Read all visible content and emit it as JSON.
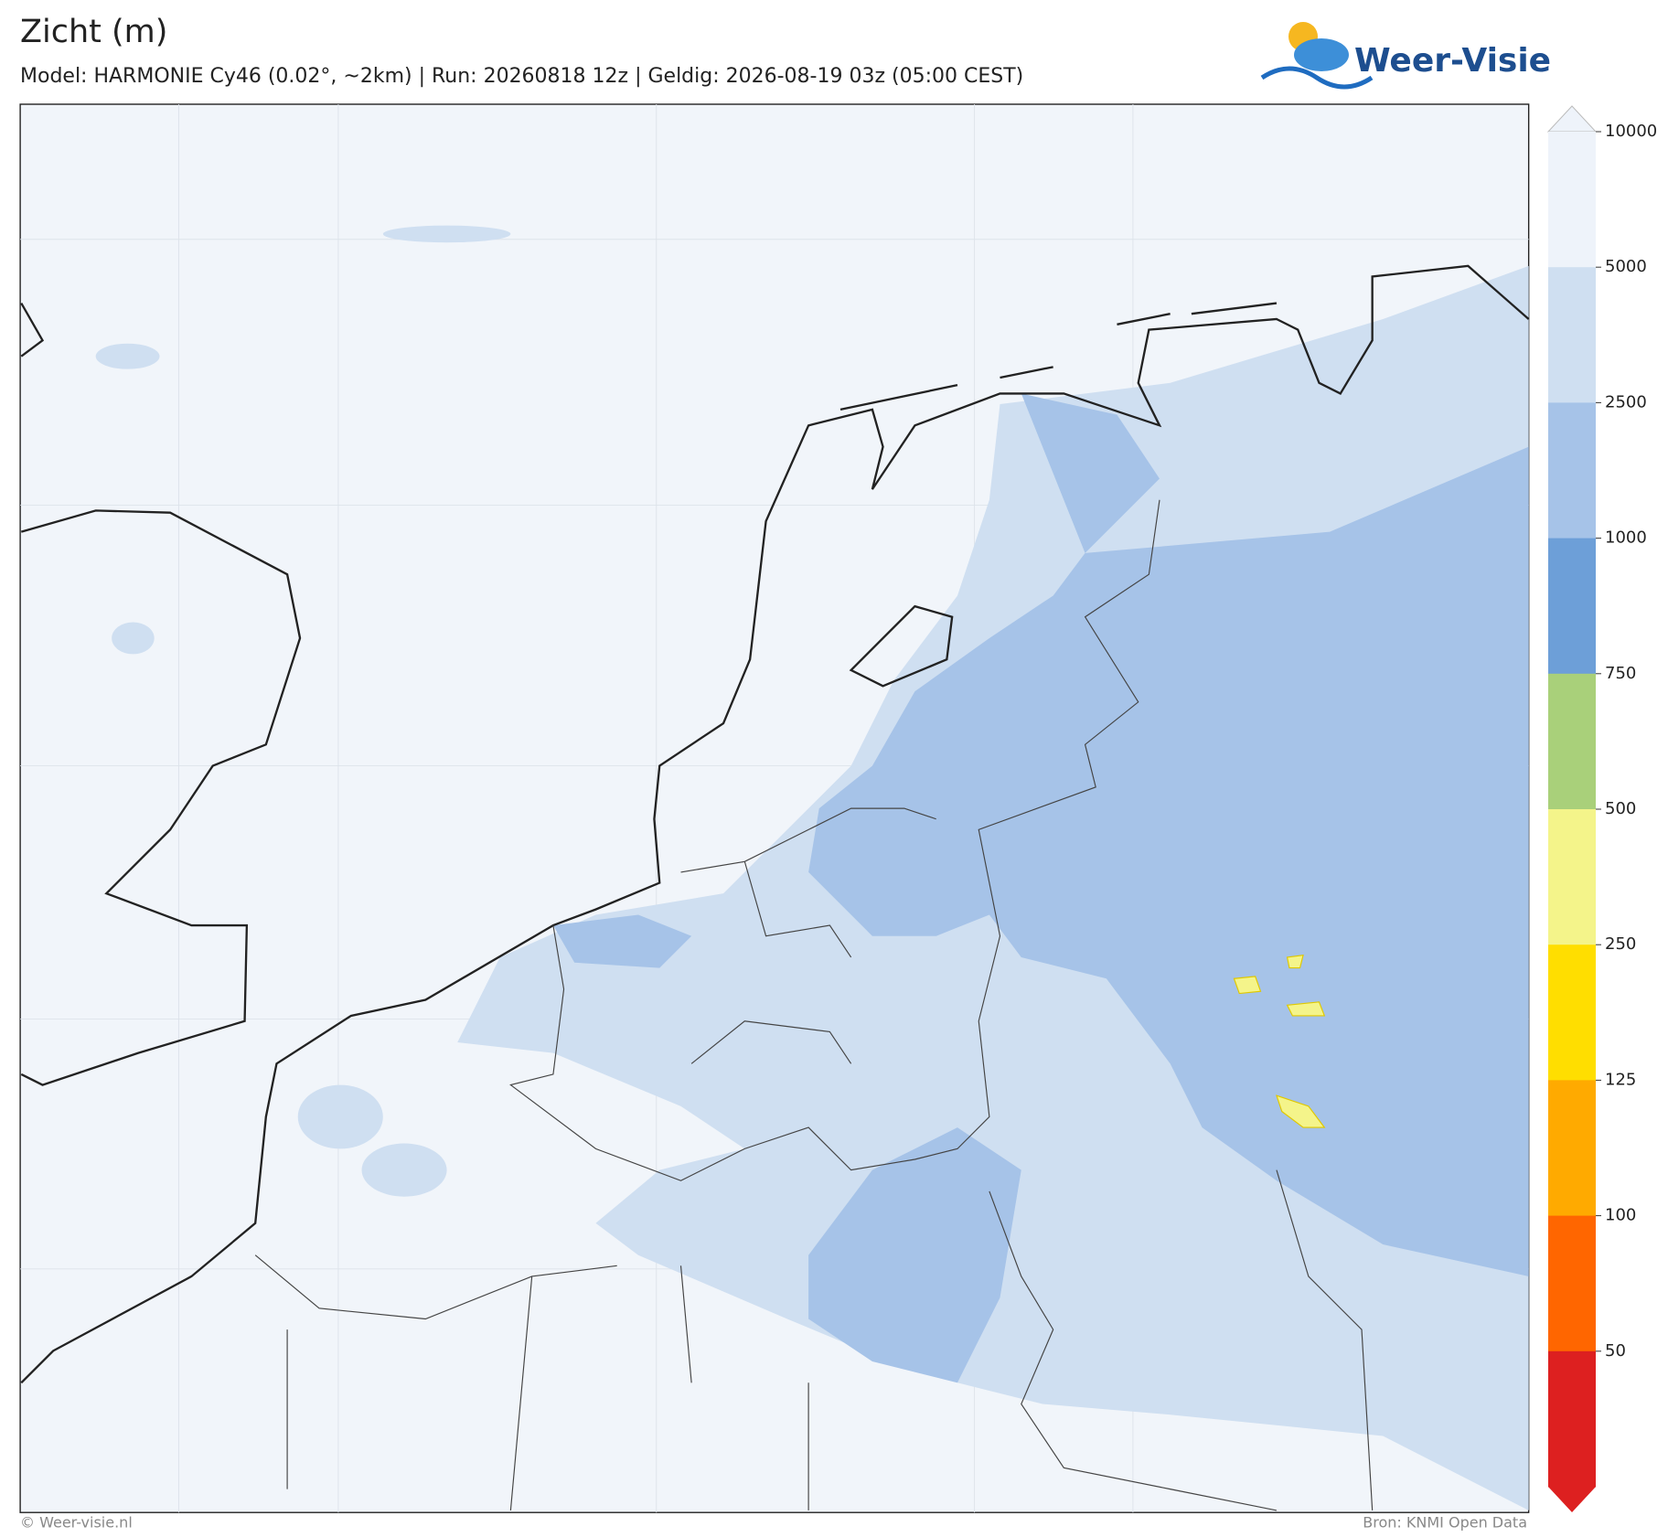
{
  "header": {
    "title": "Zicht (m)",
    "subtitle": "Model: HARMONIE Cy46 (0.02°, ~2km)  |  Run: 20260818 12z  |  Geldig: 2026-08-19 03z (05:00 CEST)",
    "logo": "Weer-Visie"
  },
  "colorbar": {
    "ticks": [
      10000,
      5000,
      2500,
      1000,
      750,
      500,
      250,
      125,
      100,
      50
    ],
    "colors": [
      "#eef3fa",
      "#cfdff1",
      "#a6c3e8",
      "#6d9fd8",
      "#a9d07a",
      "#f4f48a",
      "#ffde00",
      "#ffaa00",
      "#ff6600",
      "#dd2020"
    ]
  },
  "footer": {
    "left": "© Weer-visie.nl",
    "right": "Bron: KNMI Open Data"
  }
}
